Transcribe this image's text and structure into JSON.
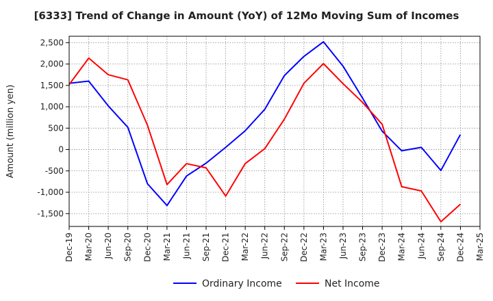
{
  "chart_data": {
    "type": "line",
    "title": "[6333]  Trend of Change in Amount (YoY) of 12Mo Moving Sum of Incomes",
    "ylabel": "Amount (million yen)",
    "xlabel": "",
    "ylim": [
      -1800,
      2650
    ],
    "yticks": [
      -1500,
      -1000,
      -500,
      0,
      500,
      1000,
      1500,
      2000,
      2500
    ],
    "ytick_labels": [
      "-1,500",
      "-1,000",
      "-500",
      "0",
      "500",
      "1,000",
      "1,500",
      "2,000",
      "2,500"
    ],
    "categories": [
      "Dec-19",
      "Mar-20",
      "Jun-20",
      "Sep-20",
      "Dec-20",
      "Mar-21",
      "Jun-21",
      "Sep-21",
      "Dec-21",
      "Mar-22",
      "Jun-22",
      "Sep-22",
      "Dec-22",
      "Mar-23",
      "Jun-23",
      "Sep-23",
      "Dec-23",
      "Mar-24",
      "Jun-24",
      "Sep-24",
      "Dec-24",
      "Mar-25"
    ],
    "grid": true,
    "legend_position": "bottom",
    "series": [
      {
        "name": "Ordinary Income",
        "color": "#0000ff",
        "values": [
          1550,
          1600,
          1020,
          520,
          -800,
          -1310,
          -620,
          -320,
          50,
          440,
          940,
          1730,
          2180,
          2520,
          1950,
          1200,
          430,
          -30,
          50,
          -490,
          350,
          null
        ]
      },
      {
        "name": "Net Income",
        "color": "#ff0000",
        "values": [
          1520,
          2140,
          1750,
          1630,
          570,
          -820,
          -330,
          -430,
          -1090,
          -330,
          20,
          710,
          1550,
          2010,
          1540,
          1100,
          590,
          -870,
          -970,
          -1690,
          -1280,
          null
        ]
      }
    ]
  }
}
